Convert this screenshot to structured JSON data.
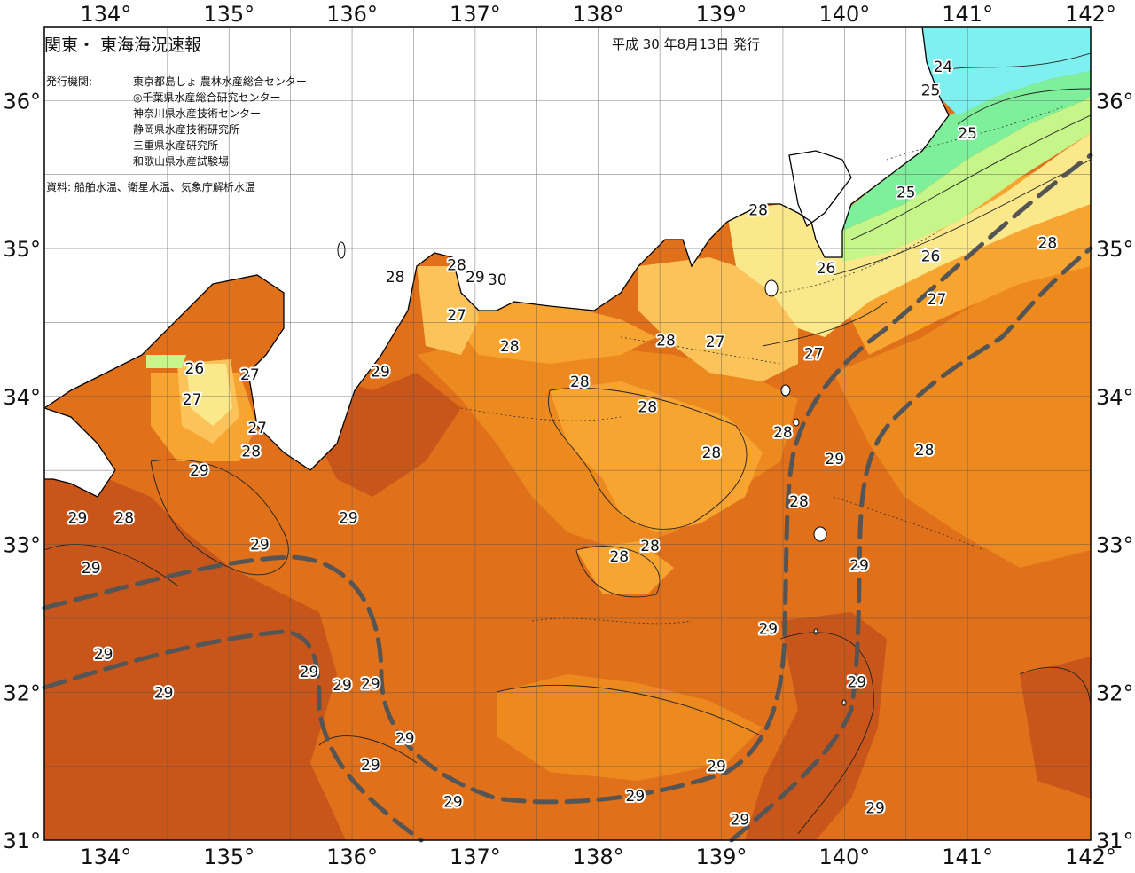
{
  "header": {
    "title": "関東・ 東海海況速報",
    "date": "平成 30 年8月13日 発行",
    "agency_label": "発行機関:",
    "agencies": [
      "東京都島しょ 農林水産総合センター",
      "◎千葉県水産総合研究センター",
      "神奈川県水産技術センター",
      "静岡県水産技術研究所",
      "三重県水産研究所",
      "和歌山県水産試験場"
    ],
    "source": "資料: 船舶水温、衛星水温、気象庁解析水温"
  },
  "axes": {
    "longitude_labels": [
      "134°",
      "135°",
      "136°",
      "137°",
      "138°",
      "139°",
      "140°",
      "141°",
      "142°"
    ],
    "latitude_labels": [
      "36°",
      "35°",
      "34°",
      "33°",
      "32°",
      "31°"
    ]
  },
  "colors": {
    "t24": "#7ff0f0",
    "t25": "#7eef9a",
    "t26": "#c6f58a",
    "t27": "#fbe88a",
    "t27_5": "#fbc35a",
    "t28": "#f7a430",
    "t28_5": "#ec8a1f",
    "t29": "#e0701a",
    "t29_5": "#c8561a",
    "t30": "#b84715",
    "kuroshio": "#555555",
    "land": "#ffffff"
  },
  "contour_labels": [
    {
      "value": "24",
      "lon": 140.8,
      "lat": 36.23
    },
    {
      "value": "25",
      "lon": 140.7,
      "lat": 36.07
    },
    {
      "value": "25",
      "lon": 141.0,
      "lat": 35.78
    },
    {
      "value": "25",
      "lon": 140.5,
      "lat": 35.38
    },
    {
      "value": "26",
      "lon": 140.7,
      "lat": 34.95
    },
    {
      "value": "26",
      "lon": 139.85,
      "lat": 34.87
    },
    {
      "value": "27",
      "lon": 140.75,
      "lat": 34.66
    },
    {
      "value": "27",
      "lon": 139.75,
      "lat": 34.29
    },
    {
      "value": "27",
      "lon": 138.95,
      "lat": 34.37
    },
    {
      "value": "28",
      "lon": 141.65,
      "lat": 35.04
    },
    {
      "value": "28",
      "lon": 139.3,
      "lat": 35.26
    },
    {
      "value": "28",
      "lon": 136.35,
      "lat": 34.81
    },
    {
      "value": "28",
      "lon": 136.85,
      "lat": 34.89
    },
    {
      "value": "29",
      "lon": 137.0,
      "lat": 34.81
    },
    {
      "value": "30",
      "lon": 137.18,
      "lat": 34.79
    },
    {
      "value": "27",
      "lon": 136.85,
      "lat": 34.55
    },
    {
      "value": "28",
      "lon": 137.28,
      "lat": 34.34
    },
    {
      "value": "28",
      "lon": 138.55,
      "lat": 34.38
    },
    {
      "value": "28",
      "lon": 137.85,
      "lat": 34.1
    },
    {
      "value": "28",
      "lon": 138.4,
      "lat": 33.93
    },
    {
      "value": "28",
      "lon": 138.92,
      "lat": 33.62
    },
    {
      "value": "28",
      "lon": 139.5,
      "lat": 33.76
    },
    {
      "value": "29",
      "lon": 139.92,
      "lat": 33.58
    },
    {
      "value": "28",
      "lon": 140.65,
      "lat": 33.64
    },
    {
      "value": "28",
      "lon": 139.63,
      "lat": 33.29
    },
    {
      "value": "28",
      "lon": 138.42,
      "lat": 32.99
    },
    {
      "value": "28",
      "lon": 138.17,
      "lat": 32.92
    },
    {
      "value": "29",
      "lon": 140.12,
      "lat": 32.86
    },
    {
      "value": "29",
      "lon": 139.38,
      "lat": 32.43
    },
    {
      "value": "29",
      "lon": 140.1,
      "lat": 32.07
    },
    {
      "value": "29",
      "lon": 136.23,
      "lat": 34.17
    },
    {
      "value": "26",
      "lon": 134.72,
      "lat": 34.19
    },
    {
      "value": "27",
      "lon": 135.17,
      "lat": 34.15
    },
    {
      "value": "27",
      "lon": 134.7,
      "lat": 33.98
    },
    {
      "value": "27",
      "lon": 135.23,
      "lat": 33.79
    },
    {
      "value": "28",
      "lon": 135.18,
      "lat": 33.63
    },
    {
      "value": "29",
      "lon": 134.76,
      "lat": 33.5
    },
    {
      "value": "29",
      "lon": 133.77,
      "lat": 33.18
    },
    {
      "value": "28",
      "lon": 134.15,
      "lat": 33.18
    },
    {
      "value": "29",
      "lon": 135.97,
      "lat": 33.18
    },
    {
      "value": "29",
      "lon": 135.25,
      "lat": 33.0
    },
    {
      "value": "29",
      "lon": 133.88,
      "lat": 32.84
    },
    {
      "value": "29",
      "lon": 133.98,
      "lat": 32.26
    },
    {
      "value": "29",
      "lon": 134.47,
      "lat": 32.0
    },
    {
      "value": "29",
      "lon": 135.65,
      "lat": 32.14
    },
    {
      "value": "29",
      "lon": 135.92,
      "lat": 32.05
    },
    {
      "value": "29",
      "lon": 136.15,
      "lat": 32.06
    },
    {
      "value": "29",
      "lon": 136.43,
      "lat": 31.69
    },
    {
      "value": "29",
      "lon": 136.15,
      "lat": 31.51
    },
    {
      "value": "29",
      "lon": 136.82,
      "lat": 31.26
    },
    {
      "value": "29",
      "lon": 138.96,
      "lat": 31.5
    },
    {
      "value": "29",
      "lon": 138.3,
      "lat": 31.3
    },
    {
      "value": "29",
      "lon": 139.15,
      "lat": 31.14
    },
    {
      "value": "29",
      "lon": 140.25,
      "lat": 31.22
    }
  ]
}
